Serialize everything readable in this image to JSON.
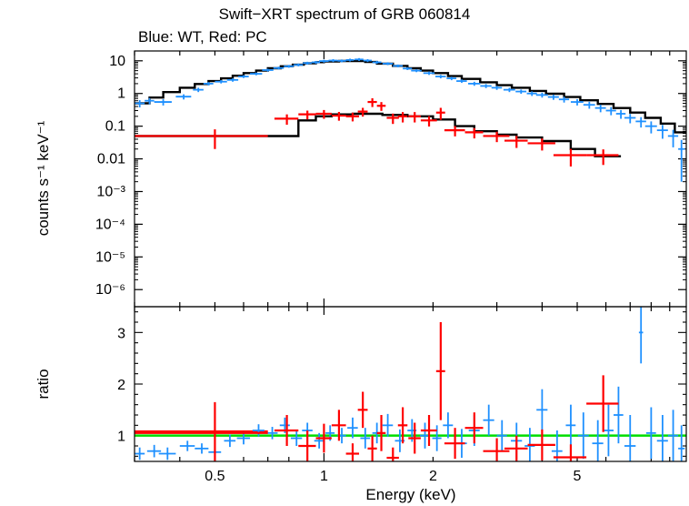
{
  "chart_data": [
    {
      "type": "scatter",
      "panel": "spectrum",
      "title": "Swift−XRT spectrum of GRB 060814",
      "subtitle": "Blue: WT, Red: PC",
      "ylabel": "counts s⁻¹ keV⁻¹",
      "xscale": "log",
      "yscale": "log",
      "xlim": [
        0.3,
        10
      ],
      "ylim": [
        3e-07,
        20
      ],
      "y_tick_labels": [
        {
          "v": 10,
          "t": "10"
        },
        {
          "v": 1,
          "t": "1"
        },
        {
          "v": 0.1,
          "t": "0.1"
        },
        {
          "v": 0.01,
          "t": "0.01"
        },
        {
          "v": 0.001,
          "t": "10⁻³"
        },
        {
          "v": 0.0001,
          "t": "10⁻⁴"
        },
        {
          "v": 1e-05,
          "t": "10⁻⁵"
        },
        {
          "v": 1e-06,
          "t": "10⁻⁶"
        }
      ],
      "colors": {
        "wt": "#1e90ff",
        "pc": "#ff0000",
        "model": "#000000"
      },
      "series": [
        {
          "color_key": "wt",
          "x": [
            0.31,
            0.33,
            0.36,
            0.41,
            0.45,
            0.48,
            0.52,
            0.56,
            0.6,
            0.65,
            0.7,
            0.75,
            0.8,
            0.85,
            0.9,
            0.95,
            1.0,
            1.06,
            1.12,
            1.18,
            1.25,
            1.32,
            1.4,
            1.5,
            1.6,
            1.7,
            1.8,
            1.95,
            2.1,
            2.25,
            2.4,
            2.6,
            2.8,
            3.0,
            3.25,
            3.5,
            3.75,
            4.0,
            4.3,
            4.6,
            5.0,
            5.4,
            5.8,
            6.2,
            6.6,
            7.0,
            7.5,
            8.0,
            8.6,
            9.2,
            9.7
          ],
          "y": [
            0.5,
            0.6,
            0.55,
            0.8,
            1.3,
            2.0,
            2.3,
            2.6,
            3.3,
            4.0,
            5.2,
            6.0,
            6.8,
            7.5,
            8.5,
            9.0,
            9.8,
            10.2,
            10.0,
            10.6,
            11.0,
            10.2,
            9.0,
            8.2,
            7.0,
            5.8,
            5.0,
            4.2,
            3.3,
            2.9,
            2.4,
            2.0,
            1.7,
            1.5,
            1.3,
            1.15,
            1.0,
            0.9,
            0.78,
            0.66,
            0.55,
            0.45,
            0.36,
            0.3,
            0.24,
            0.18,
            0.14,
            0.1,
            0.075,
            0.05,
            0.02
          ],
          "xerr": [
            0.01,
            0.01,
            0.02,
            0.02,
            0.015,
            0.015,
            0.02,
            0.02,
            0.02,
            0.025,
            0.025,
            0.025,
            0.025,
            0.025,
            0.025,
            0.025,
            0.03,
            0.03,
            0.03,
            0.03,
            0.035,
            0.035,
            0.04,
            0.05,
            0.05,
            0.05,
            0.06,
            0.07,
            0.07,
            0.07,
            0.08,
            0.1,
            0.1,
            0.1,
            0.12,
            0.12,
            0.12,
            0.15,
            0.15,
            0.15,
            0.2,
            0.2,
            0.2,
            0.2,
            0.2,
            0.25,
            0.25,
            0.3,
            0.3,
            0.3,
            0.2
          ],
          "yrel": [
            0.25,
            0.22,
            0.22,
            0.18,
            0.15,
            0.12,
            0.12,
            0.12,
            0.1,
            0.1,
            0.1,
            0.1,
            0.1,
            0.1,
            0.1,
            0.1,
            0.1,
            0.1,
            0.1,
            0.1,
            0.1,
            0.1,
            0.1,
            0.1,
            0.1,
            0.1,
            0.1,
            0.12,
            0.12,
            0.12,
            0.12,
            0.14,
            0.14,
            0.14,
            0.15,
            0.15,
            0.16,
            0.17,
            0.18,
            0.2,
            0.22,
            0.24,
            0.26,
            0.28,
            0.3,
            0.32,
            0.35,
            0.4,
            0.45,
            0.55,
            0.9
          ]
        },
        {
          "color_key": "pc",
          "x": [
            0.5,
            0.79,
            0.9,
            1.0,
            1.1,
            1.2,
            1.28,
            1.36,
            1.44,
            1.55,
            1.65,
            1.78,
            1.95,
            2.1,
            2.3,
            2.6,
            3.0,
            3.4,
            4.0,
            4.8,
            5.9
          ],
          "y": [
            0.05,
            0.17,
            0.23,
            0.24,
            0.21,
            0.2,
            0.28,
            0.55,
            0.42,
            0.18,
            0.2,
            0.2,
            0.15,
            0.26,
            0.075,
            0.065,
            0.05,
            0.036,
            0.03,
            0.013,
            0.013
          ],
          "xerr": [
            0.2,
            0.06,
            0.05,
            0.05,
            0.05,
            0.05,
            0.04,
            0.04,
            0.04,
            0.06,
            0.05,
            0.07,
            0.1,
            0.06,
            0.15,
            0.15,
            0.25,
            0.25,
            0.35,
            0.5,
            0.6
          ],
          "yrel": [
            0.6,
            0.35,
            0.3,
            0.3,
            0.3,
            0.3,
            0.3,
            0.3,
            0.3,
            0.35,
            0.35,
            0.35,
            0.35,
            0.4,
            0.35,
            0.35,
            0.35,
            0.4,
            0.4,
            0.55,
            0.5
          ]
        }
      ],
      "models": [
        {
          "color_key": "model",
          "x": [
            0.3,
            0.33,
            0.36,
            0.4,
            0.44,
            0.48,
            0.52,
            0.56,
            0.6,
            0.65,
            0.7,
            0.76,
            0.82,
            0.88,
            0.95,
            1.0,
            1.1,
            1.2,
            1.3,
            1.4,
            1.55,
            1.7,
            1.85,
            2.0,
            2.2,
            2.4,
            2.7,
            3.0,
            3.3,
            3.7,
            4.1,
            4.6,
            5.1,
            5.7,
            6.3,
            7.0,
            7.7,
            8.5,
            9.3,
            10.0
          ],
          "y": [
            0.5,
            0.75,
            1.1,
            1.5,
            1.95,
            2.4,
            2.9,
            3.5,
            4.2,
            5.0,
            5.9,
            6.8,
            7.6,
            8.4,
            9.1,
            9.5,
            9.9,
            9.8,
            9.2,
            8.2,
            7.0,
            5.9,
            5.0,
            4.2,
            3.4,
            2.8,
            2.2,
            1.8,
            1.5,
            1.2,
            0.98,
            0.78,
            0.62,
            0.48,
            0.36,
            0.26,
            0.18,
            0.12,
            0.065,
            0.03
          ]
        },
        {
          "color_key": "model",
          "x": [
            0.3,
            0.7,
            0.85,
            0.95,
            1.05,
            1.2,
            1.45,
            1.7,
            2.0,
            2.3,
            2.6,
            3.0,
            3.4,
            4.0,
            4.8,
            5.6,
            6.6
          ],
          "y": [
            0.05,
            0.05,
            0.15,
            0.2,
            0.23,
            0.24,
            0.22,
            0.2,
            0.16,
            0.1,
            0.07,
            0.055,
            0.045,
            0.035,
            0.02,
            0.012,
            0.008
          ]
        }
      ]
    },
    {
      "type": "scatter",
      "panel": "ratio",
      "xlabel": "Energy (keV)",
      "ylabel": "ratio",
      "xscale": "log",
      "xlim": [
        0.3,
        10
      ],
      "ylim": [
        0.5,
        3.5
      ],
      "x_tick_labels": [
        {
          "v": 0.5,
          "t": "0.5"
        },
        {
          "v": 1,
          "t": "1"
        },
        {
          "v": 2,
          "t": "2"
        },
        {
          "v": 5,
          "t": "5"
        }
      ],
      "y_tick_labels": [
        {
          "v": 1,
          "t": "1"
        },
        {
          "v": 2,
          "t": "2"
        },
        {
          "v": 3,
          "t": "3"
        }
      ],
      "reference_line": {
        "y": 1,
        "color": "#00dd00"
      },
      "series": [
        {
          "color_key": "wt",
          "x": [
            0.31,
            0.34,
            0.37,
            0.42,
            0.46,
            0.5,
            0.55,
            0.6,
            0.66,
            0.72,
            0.78,
            0.84,
            0.9,
            0.97,
            1.04,
            1.12,
            1.2,
            1.3,
            1.4,
            1.5,
            1.62,
            1.75,
            1.9,
            2.05,
            2.2,
            2.4,
            2.6,
            2.85,
            3.1,
            3.4,
            3.7,
            4.0,
            4.4,
            4.8,
            5.2,
            5.7,
            6.1,
            6.5,
            7.0,
            7.5,
            8.0,
            8.6,
            9.2,
            9.7
          ],
          "y": [
            0.65,
            0.7,
            0.65,
            0.8,
            0.75,
            0.68,
            0.9,
            0.95,
            1.1,
            1.05,
            1.2,
            0.95,
            1.1,
            0.9,
            1.05,
            1.0,
            1.15,
            0.95,
            1.05,
            1.2,
            0.9,
            1.1,
            1.0,
            0.95,
            1.2,
            0.85,
            1.1,
            1.3,
            1.0,
            0.9,
            0.8,
            1.5,
            0.7,
            1.2,
            1.0,
            0.85,
            1.1,
            1.4,
            0.8,
            3.0,
            1.05,
            0.9,
            1.0,
            0.75
          ],
          "xerr": [
            0.01,
            0.015,
            0.02,
            0.02,
            0.02,
            0.02,
            0.02,
            0.025,
            0.025,
            0.025,
            0.025,
            0.03,
            0.03,
            0.03,
            0.03,
            0.03,
            0.04,
            0.04,
            0.04,
            0.05,
            0.05,
            0.05,
            0.06,
            0.06,
            0.07,
            0.08,
            0.09,
            0.1,
            0.1,
            0.12,
            0.12,
            0.14,
            0.15,
            0.15,
            0.18,
            0.2,
            0.2,
            0.2,
            0.25,
            0.1,
            0.25,
            0.3,
            0.3,
            0.2
          ],
          "yerr": [
            0.12,
            0.12,
            0.12,
            0.1,
            0.1,
            0.1,
            0.12,
            0.12,
            0.12,
            0.12,
            0.15,
            0.15,
            0.15,
            0.15,
            0.15,
            0.15,
            0.2,
            0.2,
            0.2,
            0.22,
            0.22,
            0.22,
            0.25,
            0.25,
            0.25,
            0.28,
            0.3,
            0.3,
            0.3,
            0.35,
            0.35,
            0.4,
            0.4,
            0.4,
            0.45,
            0.45,
            0.5,
            0.55,
            0.6,
            0.6,
            0.5,
            0.5,
            0.5,
            0.45
          ]
        },
        {
          "color_key": "pc",
          "x": [
            0.5,
            0.79,
            0.9,
            1.0,
            1.1,
            1.2,
            1.28,
            1.36,
            1.44,
            1.55,
            1.65,
            1.78,
            1.95,
            2.1,
            2.3,
            2.6,
            3.0,
            3.4,
            4.0,
            4.8,
            5.9
          ],
          "y": [
            1.05,
            1.1,
            0.8,
            0.95,
            1.2,
            0.65,
            1.5,
            0.75,
            1.05,
            0.57,
            1.2,
            0.95,
            1.1,
            2.25,
            0.85,
            1.15,
            0.7,
            0.75,
            0.82,
            0.58,
            1.62
          ],
          "xerr": [
            0.2,
            0.06,
            0.05,
            0.05,
            0.05,
            0.05,
            0.04,
            0.04,
            0.04,
            0.06,
            0.05,
            0.07,
            0.1,
            0.06,
            0.15,
            0.15,
            0.25,
            0.25,
            0.35,
            0.5,
            0.6
          ],
          "yerr": [
            0.6,
            0.3,
            0.3,
            0.28,
            0.3,
            0.2,
            0.35,
            0.25,
            0.35,
            0.2,
            0.35,
            0.3,
            0.3,
            0.95,
            0.3,
            0.3,
            0.25,
            0.25,
            0.3,
            0.25,
            0.55
          ]
        }
      ],
      "models": [
        {
          "color_key": "pc",
          "x": [
            0.3,
            0.7
          ],
          "y": [
            1.08,
            1.08
          ]
        }
      ]
    }
  ]
}
